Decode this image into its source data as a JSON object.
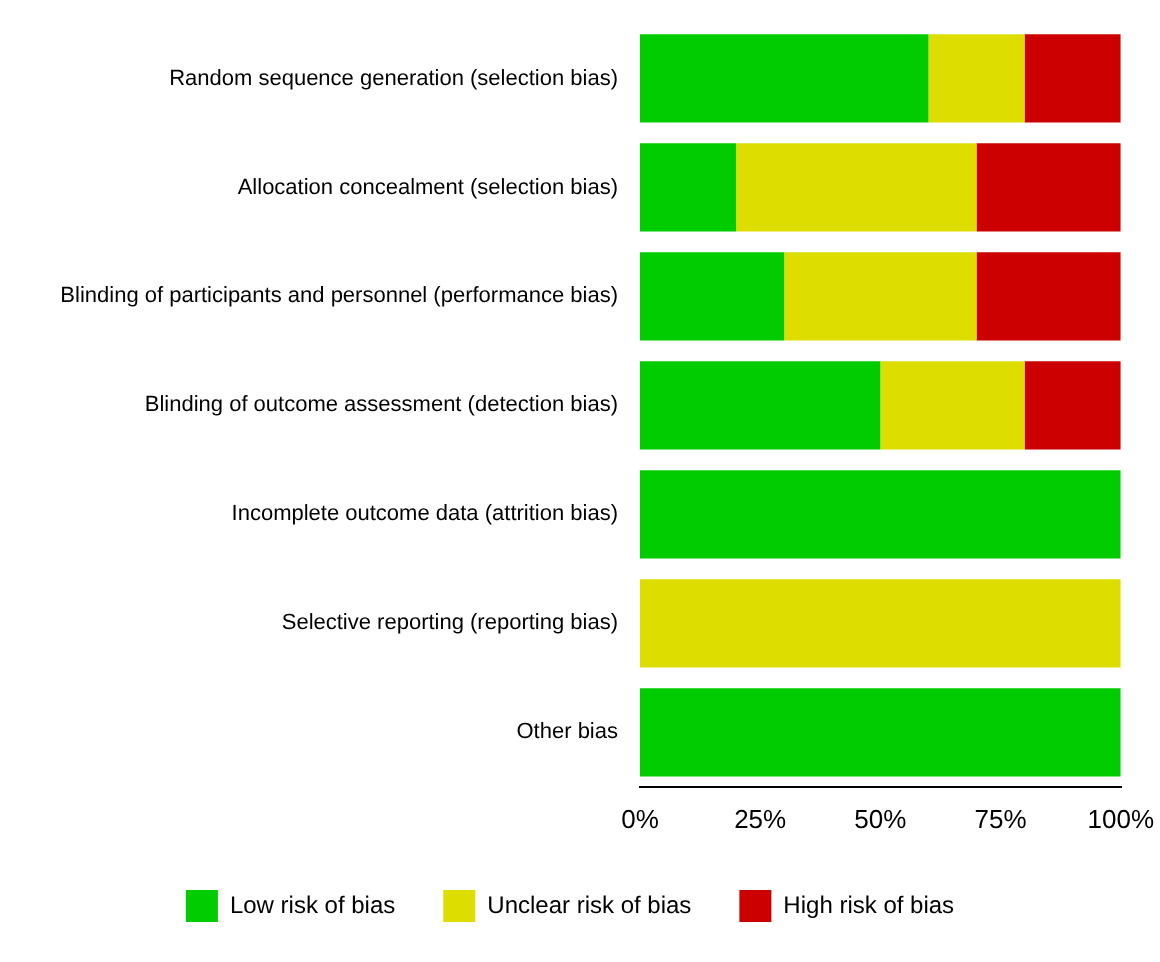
{
  "chart_data": {
    "type": "bar",
    "orientation": "horizontal",
    "stacked": true,
    "categories": [
      "Random sequence generation (selection bias)",
      "Allocation concealment (selection bias)",
      "Blinding of participants and personnel (performance bias)",
      "Blinding of outcome assessment (detection bias)",
      "Incomplete outcome data (attrition bias)",
      "Selective reporting (reporting bias)",
      "Other bias"
    ],
    "series": [
      {
        "name": "Low risk of bias",
        "color": "#00cc00",
        "values": [
          60,
          20,
          30,
          50,
          100,
          0,
          100
        ]
      },
      {
        "name": "Unclear risk of bias",
        "color": "#dddd00",
        "values": [
          20,
          50,
          40,
          30,
          0,
          100,
          0
        ]
      },
      {
        "name": "High risk of bias",
        "color": "#cc0000",
        "values": [
          20,
          30,
          30,
          20,
          0,
          0,
          0
        ]
      }
    ],
    "xlim": [
      0,
      100
    ],
    "xticks": [
      {
        "value": 0,
        "label": "0%"
      },
      {
        "value": 25,
        "label": "25%"
      },
      {
        "value": 50,
        "label": "50%"
      },
      {
        "value": 75,
        "label": "75%"
      },
      {
        "value": 100,
        "label": "100%"
      }
    ],
    "grid": false,
    "legend": "bottom"
  }
}
